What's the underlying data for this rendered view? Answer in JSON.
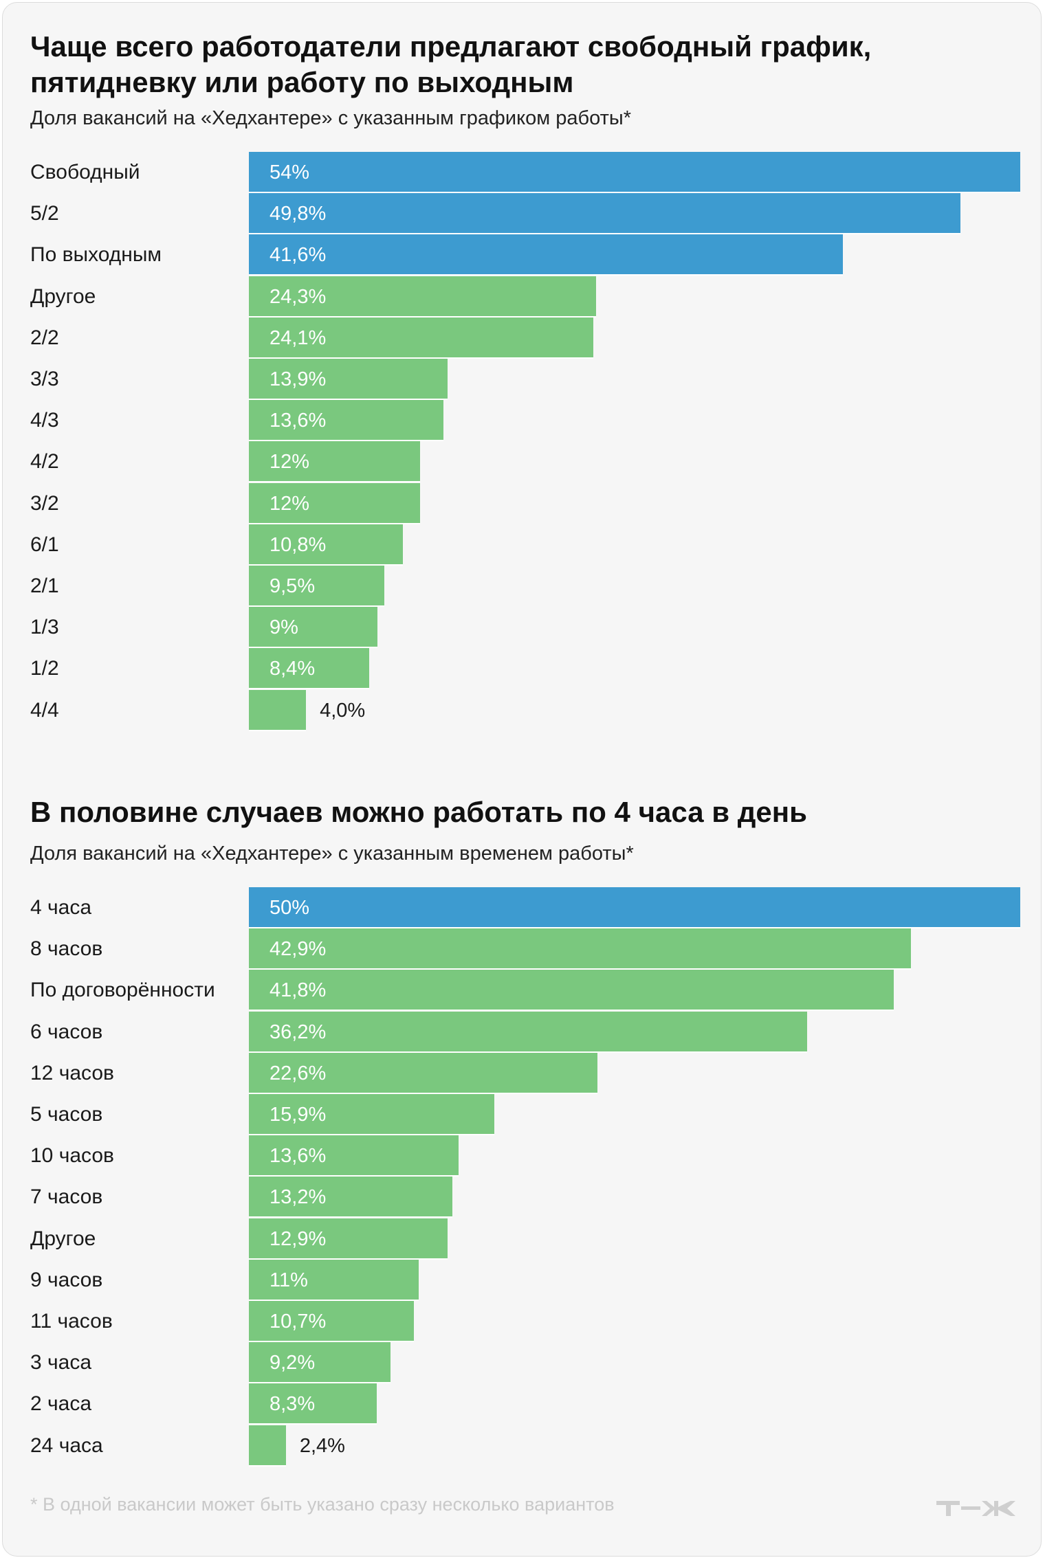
{
  "colors": {
    "highlight": "#3d9bd0",
    "other": "#7ac87e",
    "background": "#f6f6f6"
  },
  "chart_data": [
    {
      "type": "bar",
      "orientation": "horizontal",
      "title": "Чаще всего работодатели предлагают свободный график,\nпятидневку или работу по выходным",
      "subtitle": "Доля вакансий на «Хедхантере» с указанным графиком работы*",
      "xlim": [
        0,
        54
      ],
      "categories": [
        "Свободный",
        "5/2",
        "По выходным",
        "Другое",
        "2/2",
        "3/3",
        "4/3",
        "4/2",
        "3/2",
        "6/1",
        "2/1",
        "1/3",
        "1/2",
        "4/4"
      ],
      "values": [
        54,
        49.8,
        41.6,
        24.3,
        24.1,
        13.9,
        13.6,
        12,
        12,
        10.8,
        9.5,
        9,
        8.4,
        4.0
      ],
      "labels": [
        "54%",
        "49,8%",
        "41,6%",
        "24,3%",
        "24,1%",
        "13,9%",
        "13,6%",
        "12%",
        "12%",
        "10,8%",
        "9,5%",
        "9%",
        "8,4%",
        "4,0%"
      ],
      "highlighted": [
        0,
        1,
        2
      ]
    },
    {
      "type": "bar",
      "orientation": "horizontal",
      "title": "В половине случаев можно работать по 4 часа в день",
      "subtitle": "Доля вакансий на «Хедхантере» с указанным временем работы*",
      "xlim": [
        0,
        50
      ],
      "categories": [
        "4 часа",
        "8 часов",
        "По договорённости",
        "6 часов",
        "12 часов",
        "5 часов",
        "10 часов",
        "7 часов",
        "Другое",
        "9 часов",
        "11 часов",
        "3 часа",
        "2 часа",
        "24 часа"
      ],
      "values": [
        50,
        42.9,
        41.8,
        36.2,
        22.6,
        15.9,
        13.6,
        13.2,
        12.9,
        11,
        10.7,
        9.2,
        8.3,
        2.4
      ],
      "labels": [
        "50%",
        "42,9%",
        "41,8%",
        "36,2%",
        "22,6%",
        "15,9%",
        "13,6%",
        "13,2%",
        "12,9%",
        "11%",
        "10,7%",
        "9,2%",
        "8,3%",
        "2,4%"
      ],
      "highlighted": [
        0
      ]
    }
  ],
  "footnote": "* В одной вакансии может быть указано сразу несколько вариантов",
  "logo": {
    "name": "tzh-logo-icon",
    "text": "Т—Ж"
  }
}
